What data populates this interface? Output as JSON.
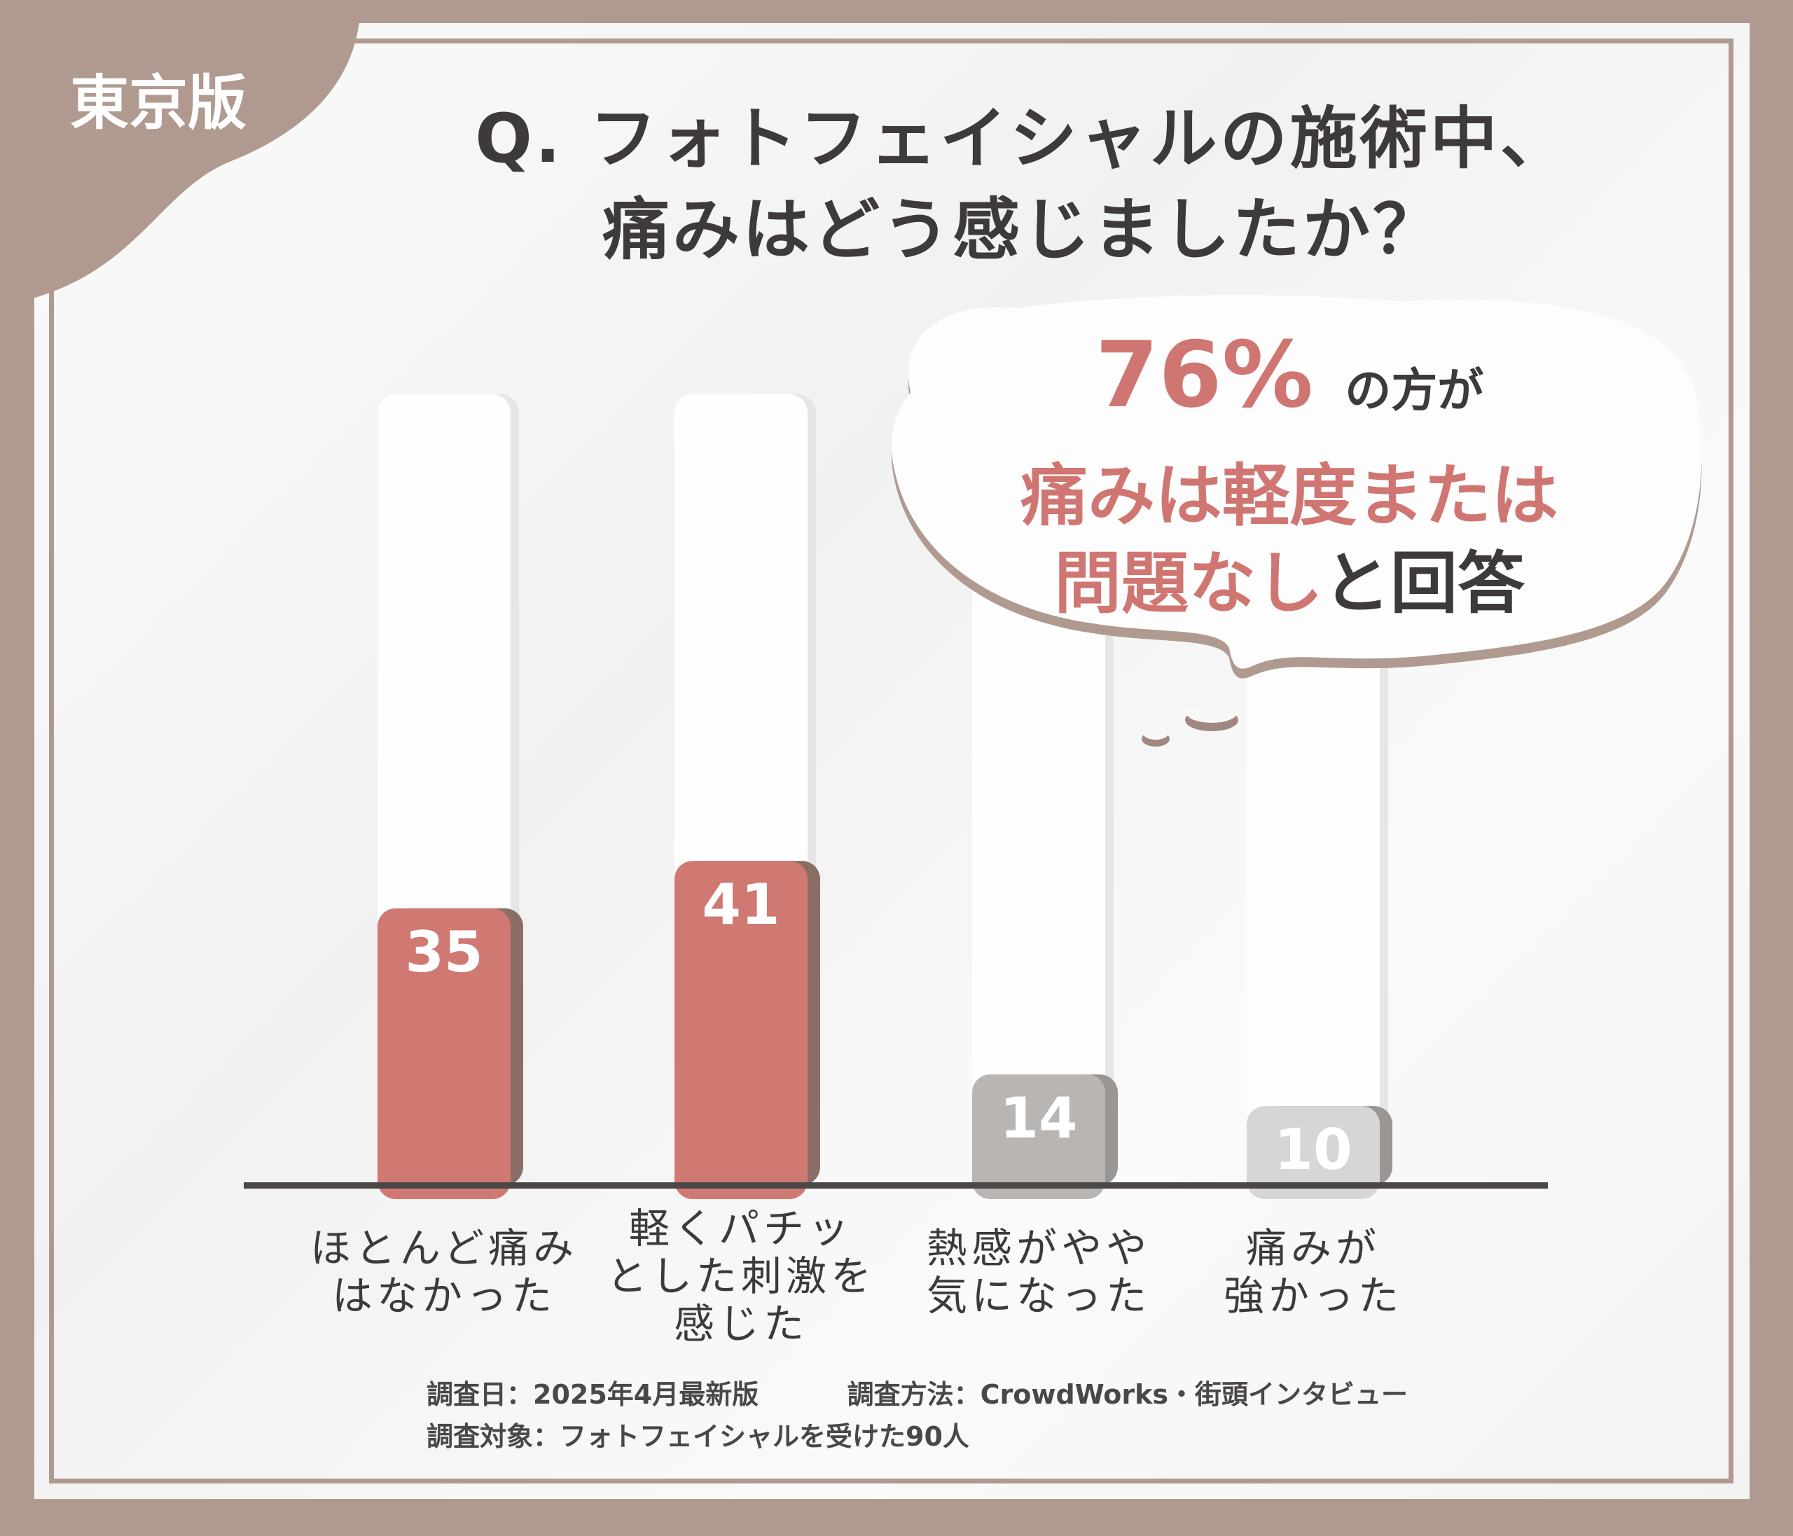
{
  "badge": "東京版",
  "title": {
    "line1": "Q. フォトフェイシャルの施術中、",
    "line2": "痛みはどう感じましたか？"
  },
  "callout": {
    "percent": "76%",
    "suffix": "の方が",
    "line2": "痛みは軽度または",
    "line3_accent": "問題なし",
    "line3_rest": "と回答"
  },
  "colors": {
    "frame": "#b09a90",
    "accent": "#d07872",
    "accent_shadow": "#8a6e66",
    "gray": "#b9b5b3",
    "light_gray": "#d8d6d5",
    "axis": "#4a4746"
  },
  "chart_data": {
    "type": "bar",
    "categories": [
      "ほとんど痛み\nはなかった",
      "軽くパチッ\nとした刺激を\n感じた",
      "熱感がやや\n気になった",
      "痛みが\n強かった"
    ],
    "values": [
      35,
      41,
      14,
      10
    ],
    "data_labels": [
      "35",
      "41",
      "14",
      "10"
    ],
    "bar_colors": [
      "#d07872",
      "#d07872",
      "#b9b5b3",
      "#d8d6d5"
    ],
    "ylim": [
      0,
      100
    ],
    "grid": false,
    "title": "",
    "xlabel": "",
    "ylabel": ""
  },
  "footer": {
    "date": "調査日：2025年4月最新版",
    "method": "調査方法：CrowdWorks・街頭インタビュー",
    "target": "調査対象：フォトフェイシャルを受けた90人"
  }
}
